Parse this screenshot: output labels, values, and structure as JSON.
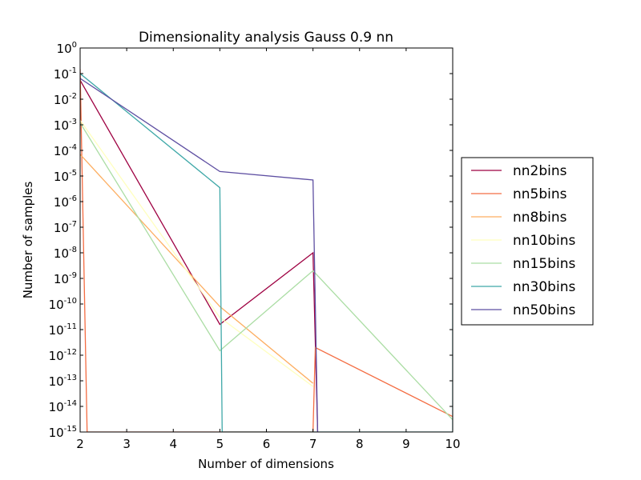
{
  "chart_data": {
    "type": "line",
    "title": "Dimensionality analysis Gauss 0.9 nn",
    "xlabel": "Number of dimensions",
    "ylabel": "Number of samples",
    "xlim": [
      2,
      10
    ],
    "ylim_log10": [
      -15,
      0
    ],
    "yscale": "log",
    "x_ticks": [
      2,
      3,
      4,
      5,
      6,
      7,
      8,
      9,
      10
    ],
    "y_tick_exponents": [
      0,
      -1,
      -2,
      -3,
      -4,
      -5,
      -6,
      -7,
      -8,
      -9,
      -10,
      -11,
      -12,
      -13,
      -14,
      -15
    ],
    "y_tick_base": "10",
    "grid": false,
    "legend_position": "right, outside",
    "series": [
      {
        "name": "nn2bins",
        "color": "#9e0142",
        "points": [
          [
            2,
            0.055
          ],
          [
            5,
            1.6e-11
          ],
          [
            7,
            1e-08
          ],
          [
            7.1,
            1e-15
          ]
        ]
      },
      {
        "name": "nn5bins",
        "color": "#f46d43",
        "points": [
          [
            2,
            0.15
          ],
          [
            2.15,
            1e-15
          ],
          [
            7,
            1e-15
          ],
          [
            7.05,
            2e-12
          ],
          [
            10,
            4e-15
          ]
        ]
      },
      {
        "name": "nn8bins",
        "color": "#fdae61",
        "points": [
          [
            2,
            7e-05
          ],
          [
            5,
            8e-11
          ],
          [
            7,
            8e-14
          ]
        ]
      },
      {
        "name": "nn10bins",
        "color": "#ffffbf",
        "points": [
          [
            2,
            0.0015
          ],
          [
            5,
            3e-11
          ],
          [
            7,
            6e-14
          ]
        ]
      },
      {
        "name": "nn15bins",
        "color": "#abdda4",
        "points": [
          [
            2,
            0.0012
          ],
          [
            5,
            1.5e-12
          ],
          [
            7,
            2e-09
          ],
          [
            10,
            3e-15
          ]
        ]
      },
      {
        "name": "nn30bins",
        "color": "#3fa8a8",
        "points": [
          [
            2,
            0.1
          ],
          [
            5,
            3.5e-06
          ],
          [
            5.05,
            1e-15
          ],
          [
            10,
            1e-15
          ],
          [
            10,
            1e-10
          ]
        ]
      },
      {
        "name": "nn50bins",
        "color": "#5e4fa2",
        "points": [
          [
            2,
            0.065
          ],
          [
            5,
            1.5e-05
          ],
          [
            7,
            7e-06
          ],
          [
            7.1,
            1e-15
          ]
        ]
      }
    ]
  }
}
